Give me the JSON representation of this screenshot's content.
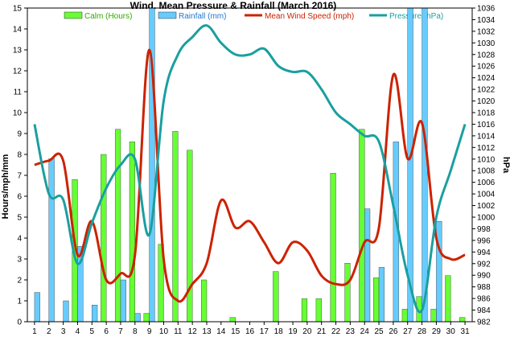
{
  "chart_data": {
    "type": "bar",
    "title": "Wind. Mean Pressure & Rainfall (March 2016)",
    "ylabel_left": "Hours/mph/mm",
    "ylabel_right": "hPa",
    "ylim_left": [
      0,
      15
    ],
    "ylim_right": [
      982,
      1036
    ],
    "x": [
      1,
      2,
      3,
      4,
      5,
      6,
      7,
      8,
      9,
      10,
      11,
      12,
      13,
      14,
      15,
      16,
      17,
      18,
      19,
      20,
      21,
      22,
      23,
      24,
      25,
      26,
      27,
      28,
      29,
      30,
      31
    ],
    "grid": false,
    "legend_position": "top",
    "series": [
      {
        "name": "Calm (Hours)",
        "kind": "bar",
        "axis": "left",
        "color": "#66ff33",
        "values": [
          0,
          0,
          0,
          6.8,
          0,
          8.0,
          9.2,
          8.6,
          0.4,
          3.7,
          9.1,
          8.2,
          2.0,
          0,
          0.2,
          0,
          0,
          2.4,
          0,
          1.1,
          1.1,
          7.1,
          2.8,
          9.2,
          2.1,
          0,
          0.6,
          1.2,
          0.6,
          2.2,
          0.2
        ]
      },
      {
        "name": "Rainfall (mm)",
        "kind": "bar",
        "axis": "left",
        "color": "#66ccff",
        "values": [
          1.4,
          7.8,
          1.0,
          3.6,
          0.8,
          0,
          2.0,
          0.4,
          15.0,
          0,
          0,
          0,
          0,
          0,
          0,
          0,
          0,
          0,
          0,
          0,
          0,
          0,
          0,
          5.4,
          2.6,
          8.6,
          15.0,
          15.0,
          4.8,
          0,
          0
        ]
      },
      {
        "name": "Mean Wind Speed (mph)",
        "kind": "line",
        "axis": "left",
        "color": "#cc2200",
        "values": [
          7.5,
          7.7,
          7.7,
          3.2,
          4.8,
          2.0,
          2.3,
          3.2,
          13.0,
          3.0,
          1.0,
          1.8,
          2.8,
          5.8,
          4.5,
          4.8,
          3.8,
          2.8,
          3.8,
          3.4,
          2.2,
          1.8,
          2.0,
          3.8,
          4.5,
          11.8,
          7.8,
          9.5,
          4.0,
          3.0,
          3.2
        ]
      },
      {
        "name": "Pressure (hPa)",
        "kind": "line",
        "axis": "right",
        "color": "#1a9fa0",
        "values": [
          1016,
          1004,
          1003,
          992,
          999,
          1005,
          1009,
          1010,
          997,
          1020,
          1028,
          1031,
          1033,
          1030,
          1028,
          1028,
          1029,
          1026,
          1025,
          1025,
          1022,
          1018,
          1016,
          1014,
          1013,
          1002,
          990,
          984,
          1000,
          1008,
          1016
        ]
      }
    ]
  }
}
